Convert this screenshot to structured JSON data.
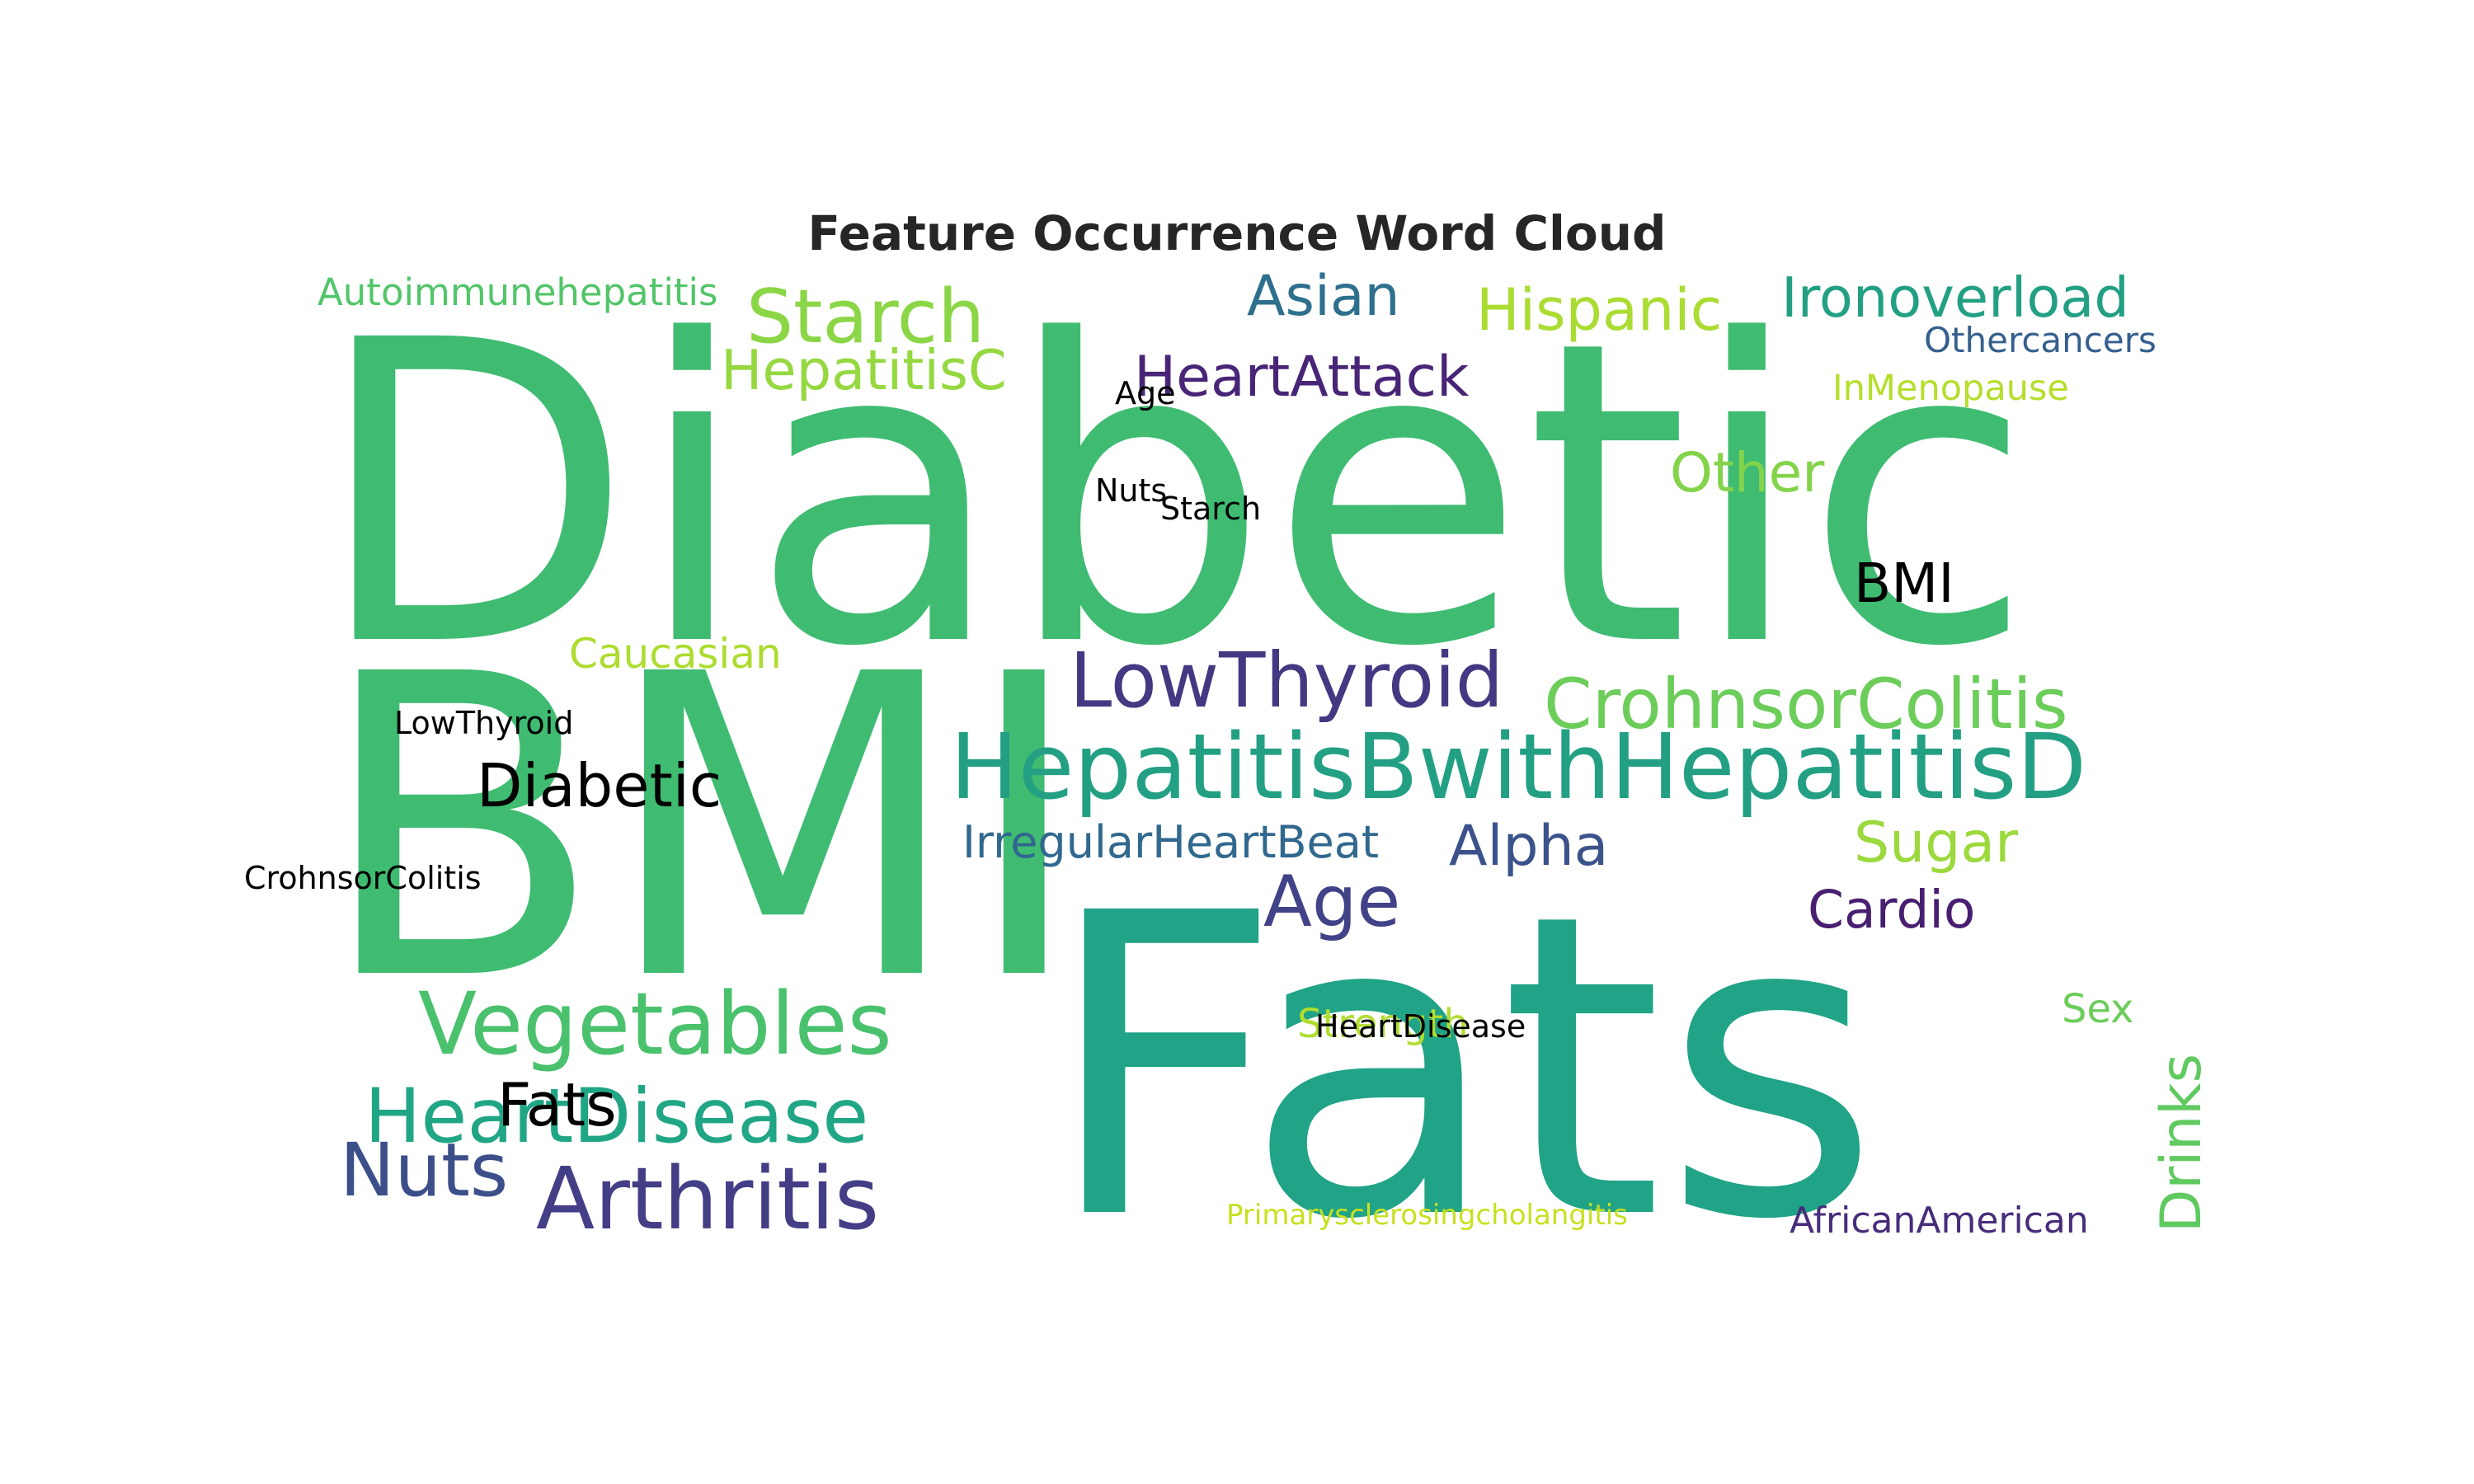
{
  "chart_data": {
    "type": "wordcloud",
    "title": "Feature Occurrence Word Cloud",
    "words": [
      {
        "text": "Diabetic",
        "frequency": 100,
        "color": "#3fbc72"
      },
      {
        "text": "BMI",
        "frequency": 88,
        "color": "#3fbc72"
      },
      {
        "text": "Fats",
        "frequency": 90,
        "color": "#20a386"
      },
      {
        "text": "HepatitisBwithHepatitisD",
        "frequency": 22,
        "color": "#23a083"
      },
      {
        "text": "LowThyroid",
        "frequency": 20,
        "color": "#453882"
      },
      {
        "text": "CrohnsorColitis",
        "frequency": 19,
        "color": "#6ccd5a"
      },
      {
        "text": "Vegetables",
        "frequency": 21,
        "color": "#4ac16d"
      },
      {
        "text": "HeartDisease",
        "frequency": 19,
        "color": "#21a685"
      },
      {
        "text": "Arthritis",
        "frequency": 23,
        "color": "#433e85"
      },
      {
        "text": "Nuts",
        "frequency": 19,
        "color": "#3c4f8a"
      },
      {
        "text": "Age",
        "frequency": 18,
        "color": "#414287"
      },
      {
        "text": "Starch",
        "frequency": 18,
        "color": "#8bd646"
      },
      {
        "text": "HeartAttack",
        "frequency": 15,
        "color": "#482576"
      },
      {
        "text": "Asian",
        "frequency": 14,
        "color": "#2e6f8e"
      },
      {
        "text": "Hispanic",
        "frequency": 15,
        "color": "#aadc32"
      },
      {
        "text": "Ironoverload",
        "frequency": 14,
        "color": "#23a083"
      },
      {
        "text": "HepatitisC",
        "frequency": 14,
        "color": "#95d840"
      },
      {
        "text": "Other",
        "frequency": 13,
        "color": "#84d44b"
      },
      {
        "text": "Alpha",
        "frequency": 14,
        "color": "#3b528b"
      },
      {
        "text": "Sugar",
        "frequency": 14,
        "color": "#9bd93c"
      },
      {
        "text": "Cardio",
        "frequency": 13,
        "color": "#481f70"
      },
      {
        "text": "IrregularHeartBeat",
        "frequency": 11,
        "color": "#31688e"
      },
      {
        "text": "Drinks",
        "frequency": 13,
        "color": "#60ca60"
      },
      {
        "text": "Caucasian",
        "frequency": 10,
        "color": "#addc30"
      },
      {
        "text": "Autoimmunehepatitis",
        "frequency": 9,
        "color": "#52c569"
      },
      {
        "text": "Othercancers",
        "frequency": 9,
        "color": "#355f8d"
      },
      {
        "text": "InMenopause",
        "frequency": 9,
        "color": "#b5de2b"
      },
      {
        "text": "Strength",
        "frequency": 9,
        "color": "#b0dd2f"
      },
      {
        "text": "Sex",
        "frequency": 10,
        "color": "#6ccd5a"
      },
      {
        "text": "AfricanAmerican",
        "frequency": 9,
        "color": "#472d7b"
      },
      {
        "text": "Primarysclerosingcholangitis",
        "frequency": 7,
        "color": "#c8e020"
      }
    ],
    "overlay_labels": [
      {
        "text": "BMI",
        "color": "#000000"
      },
      {
        "text": "Diabetic",
        "color": "#000000"
      },
      {
        "text": "Fats",
        "color": "#000000"
      },
      {
        "text": "LowThyroid",
        "color": "#000000"
      },
      {
        "text": "CrohnsorColitis",
        "color": "#000000"
      },
      {
        "text": "HeartDisease",
        "color": "#000000"
      },
      {
        "text": "Age",
        "color": "#000000"
      },
      {
        "text": "Nuts",
        "color": "#000000"
      },
      {
        "text": "Starch",
        "color": "#000000"
      }
    ]
  }
}
